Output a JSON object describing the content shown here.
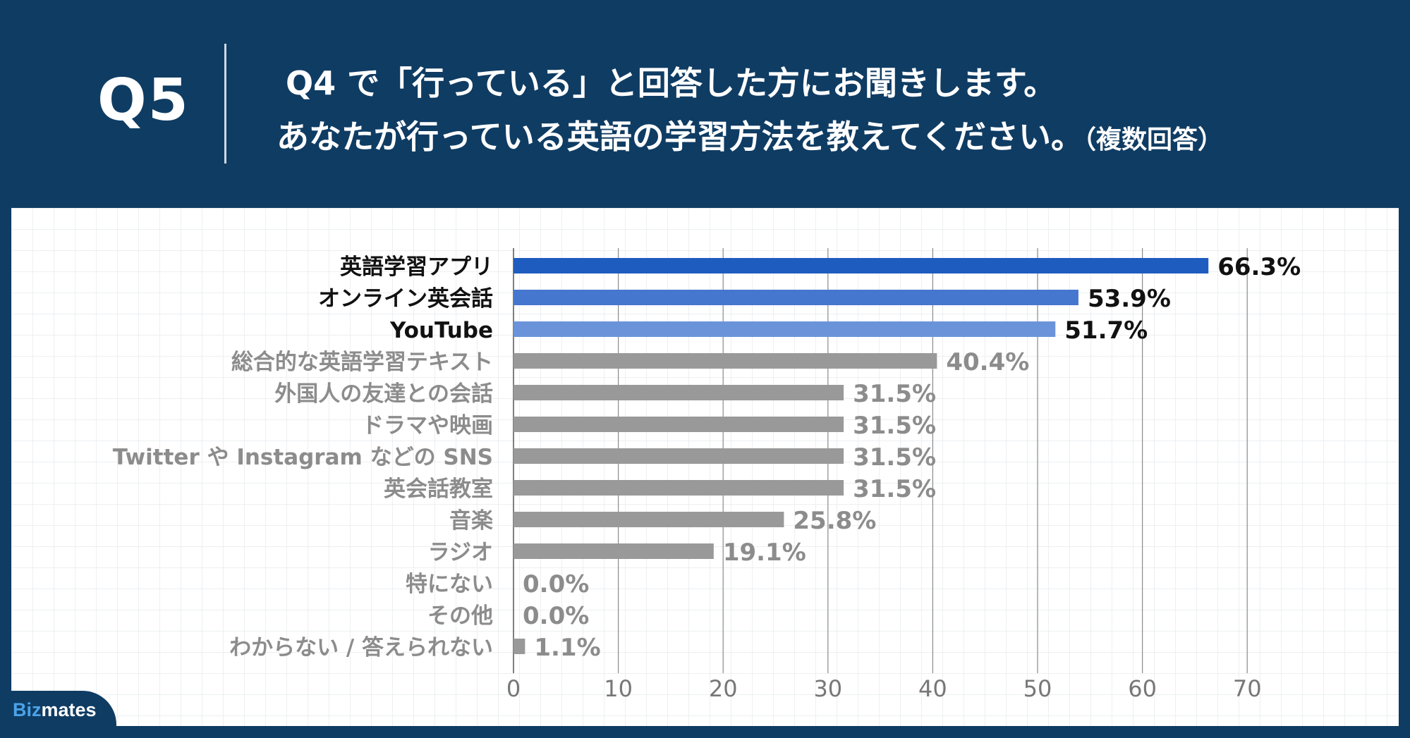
{
  "header": {
    "q_label": "Q5",
    "line1": "Q4 で「行っている」と回答した方にお聞きします。",
    "line2": "あなたが行っている英語の学習方法を教えてください。",
    "line2_sub": "（複数回答）"
  },
  "logo": {
    "biz": "Biz",
    "mates": "mates"
  },
  "chart_data": {
    "type": "bar",
    "orientation": "horizontal",
    "categories": [
      "英語学習アプリ",
      "オンライン英会話",
      "YouTube",
      "総合的な英語学習テキスト",
      "外国人の友達との会話",
      "ドラマや映画",
      "Twitter や Instagram などの SNS",
      "英会話教室",
      "音楽",
      "ラジオ",
      "特にない",
      "その他",
      "わからない / 答えられない"
    ],
    "values": [
      66.3,
      53.9,
      51.7,
      40.4,
      31.5,
      31.5,
      31.5,
      31.5,
      25.8,
      19.1,
      0.0,
      0.0,
      1.1
    ],
    "value_labels": [
      "66.3%",
      "53.9%",
      "51.7%",
      "40.4%",
      "31.5%",
      "31.5%",
      "31.5%",
      "31.5%",
      "25.8%",
      "19.1%",
      "0.0%",
      "0.0%",
      "1.1%"
    ],
    "bar_colors": [
      "#1f5cbf",
      "#4677cf",
      "#6a93da",
      "#999999",
      "#999999",
      "#999999",
      "#999999",
      "#999999",
      "#999999",
      "#999999",
      "#999999",
      "#999999",
      "#999999"
    ],
    "label_colors": [
      "#111111",
      "#111111",
      "#111111",
      "#8c8c8c",
      "#8c8c8c",
      "#8c8c8c",
      "#8c8c8c",
      "#8c8c8c",
      "#8c8c8c",
      "#8c8c8c",
      "#8c8c8c",
      "#8c8c8c",
      "#8c8c8c"
    ],
    "xlim": [
      0,
      70
    ],
    "xticks": [
      0,
      10,
      20,
      30,
      40,
      50,
      60,
      70
    ],
    "grid": true,
    "title": "",
    "xlabel": "",
    "ylabel": ""
  }
}
